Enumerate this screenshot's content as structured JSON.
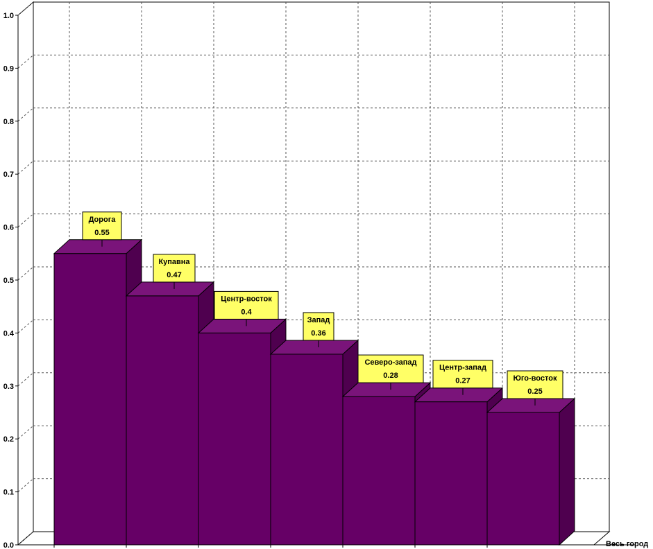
{
  "chart_data": {
    "type": "bar",
    "categories": [
      "Дорога",
      "Купавна",
      "Центр-восток",
      "Запад",
      "Северо-запад",
      "Центр-запад",
      "Юго-восток"
    ],
    "values": [
      0.55,
      0.47,
      0.4,
      0.36,
      0.28,
      0.27,
      0.25
    ],
    "value_labels": [
      "0.55",
      "0.47",
      "0.4",
      "0.36",
      "0.28",
      "0.27",
      "0.25"
    ],
    "ylim": [
      0,
      1.0
    ],
    "yticks": [
      "0.0",
      "0.1",
      "0.2",
      "0.3",
      "0.4",
      "0.5",
      "0.6",
      "0.7",
      "0.8",
      "0.9",
      "1.0"
    ],
    "series_label": "Весь город",
    "grid": true,
    "bar_color": "#660066",
    "label_bg": "#ffff66"
  }
}
